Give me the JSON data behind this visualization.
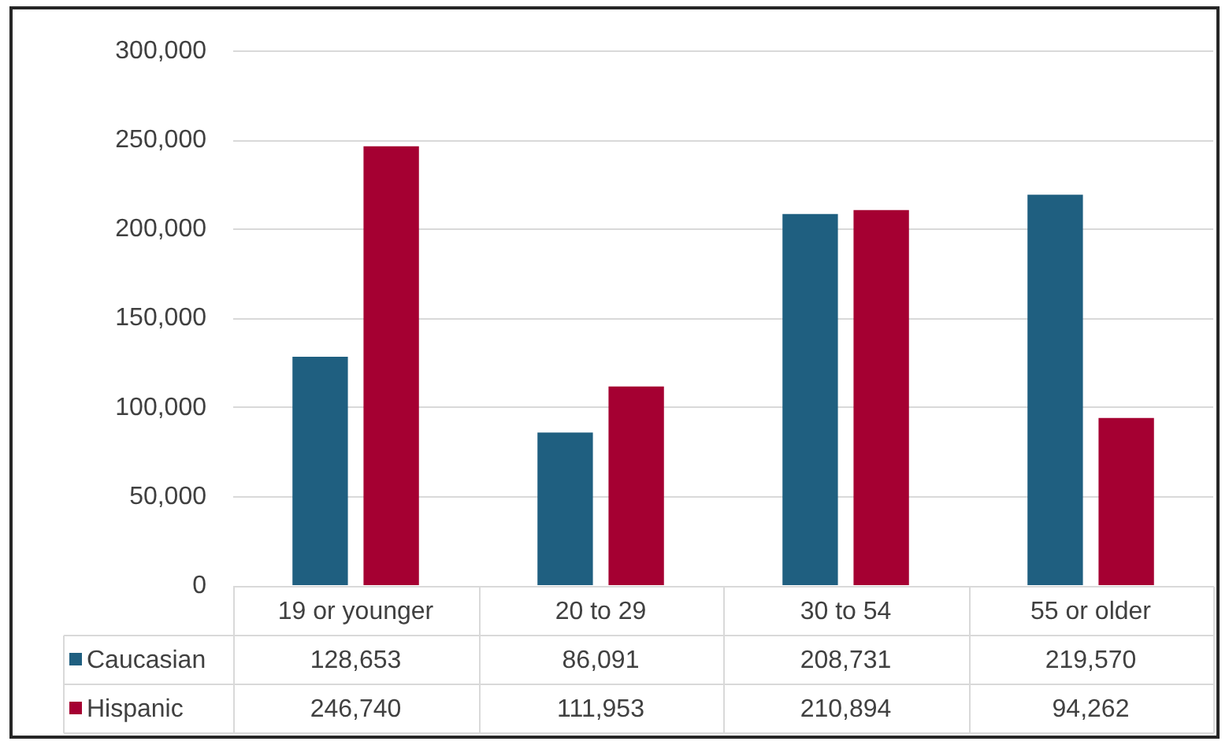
{
  "chart_data": {
    "type": "bar",
    "categories": [
      "19 or younger",
      "20 to 29",
      "30 to 54",
      "55 or older"
    ],
    "series": [
      {
        "name": "Caucasian",
        "color": "#1f5f80",
        "values": [
          128653,
          86091,
          208731,
          219570
        ],
        "value_labels": [
          "128,653",
          "86,091",
          "208,731",
          "219,570"
        ]
      },
      {
        "name": "Hispanic",
        "color": "#a50032",
        "values": [
          246740,
          111953,
          210894,
          94262
        ],
        "value_labels": [
          "246,740",
          "111,953",
          "210,894",
          "94,262"
        ]
      }
    ],
    "ylim": [
      0,
      300000
    ],
    "yticks": [
      0,
      {
        "value": 50000,
        "label": "50,000"
      },
      {
        "value": 100000,
        "label": "100,000"
      },
      {
        "value": 150000,
        "label": "150,000"
      },
      {
        "value": 200000,
        "label": "200,000"
      },
      {
        "value": 250000,
        "label": "250,000"
      },
      {
        "value": 300000,
        "label": "300,000"
      }
    ],
    "grid": "y",
    "legend": "bottom"
  }
}
